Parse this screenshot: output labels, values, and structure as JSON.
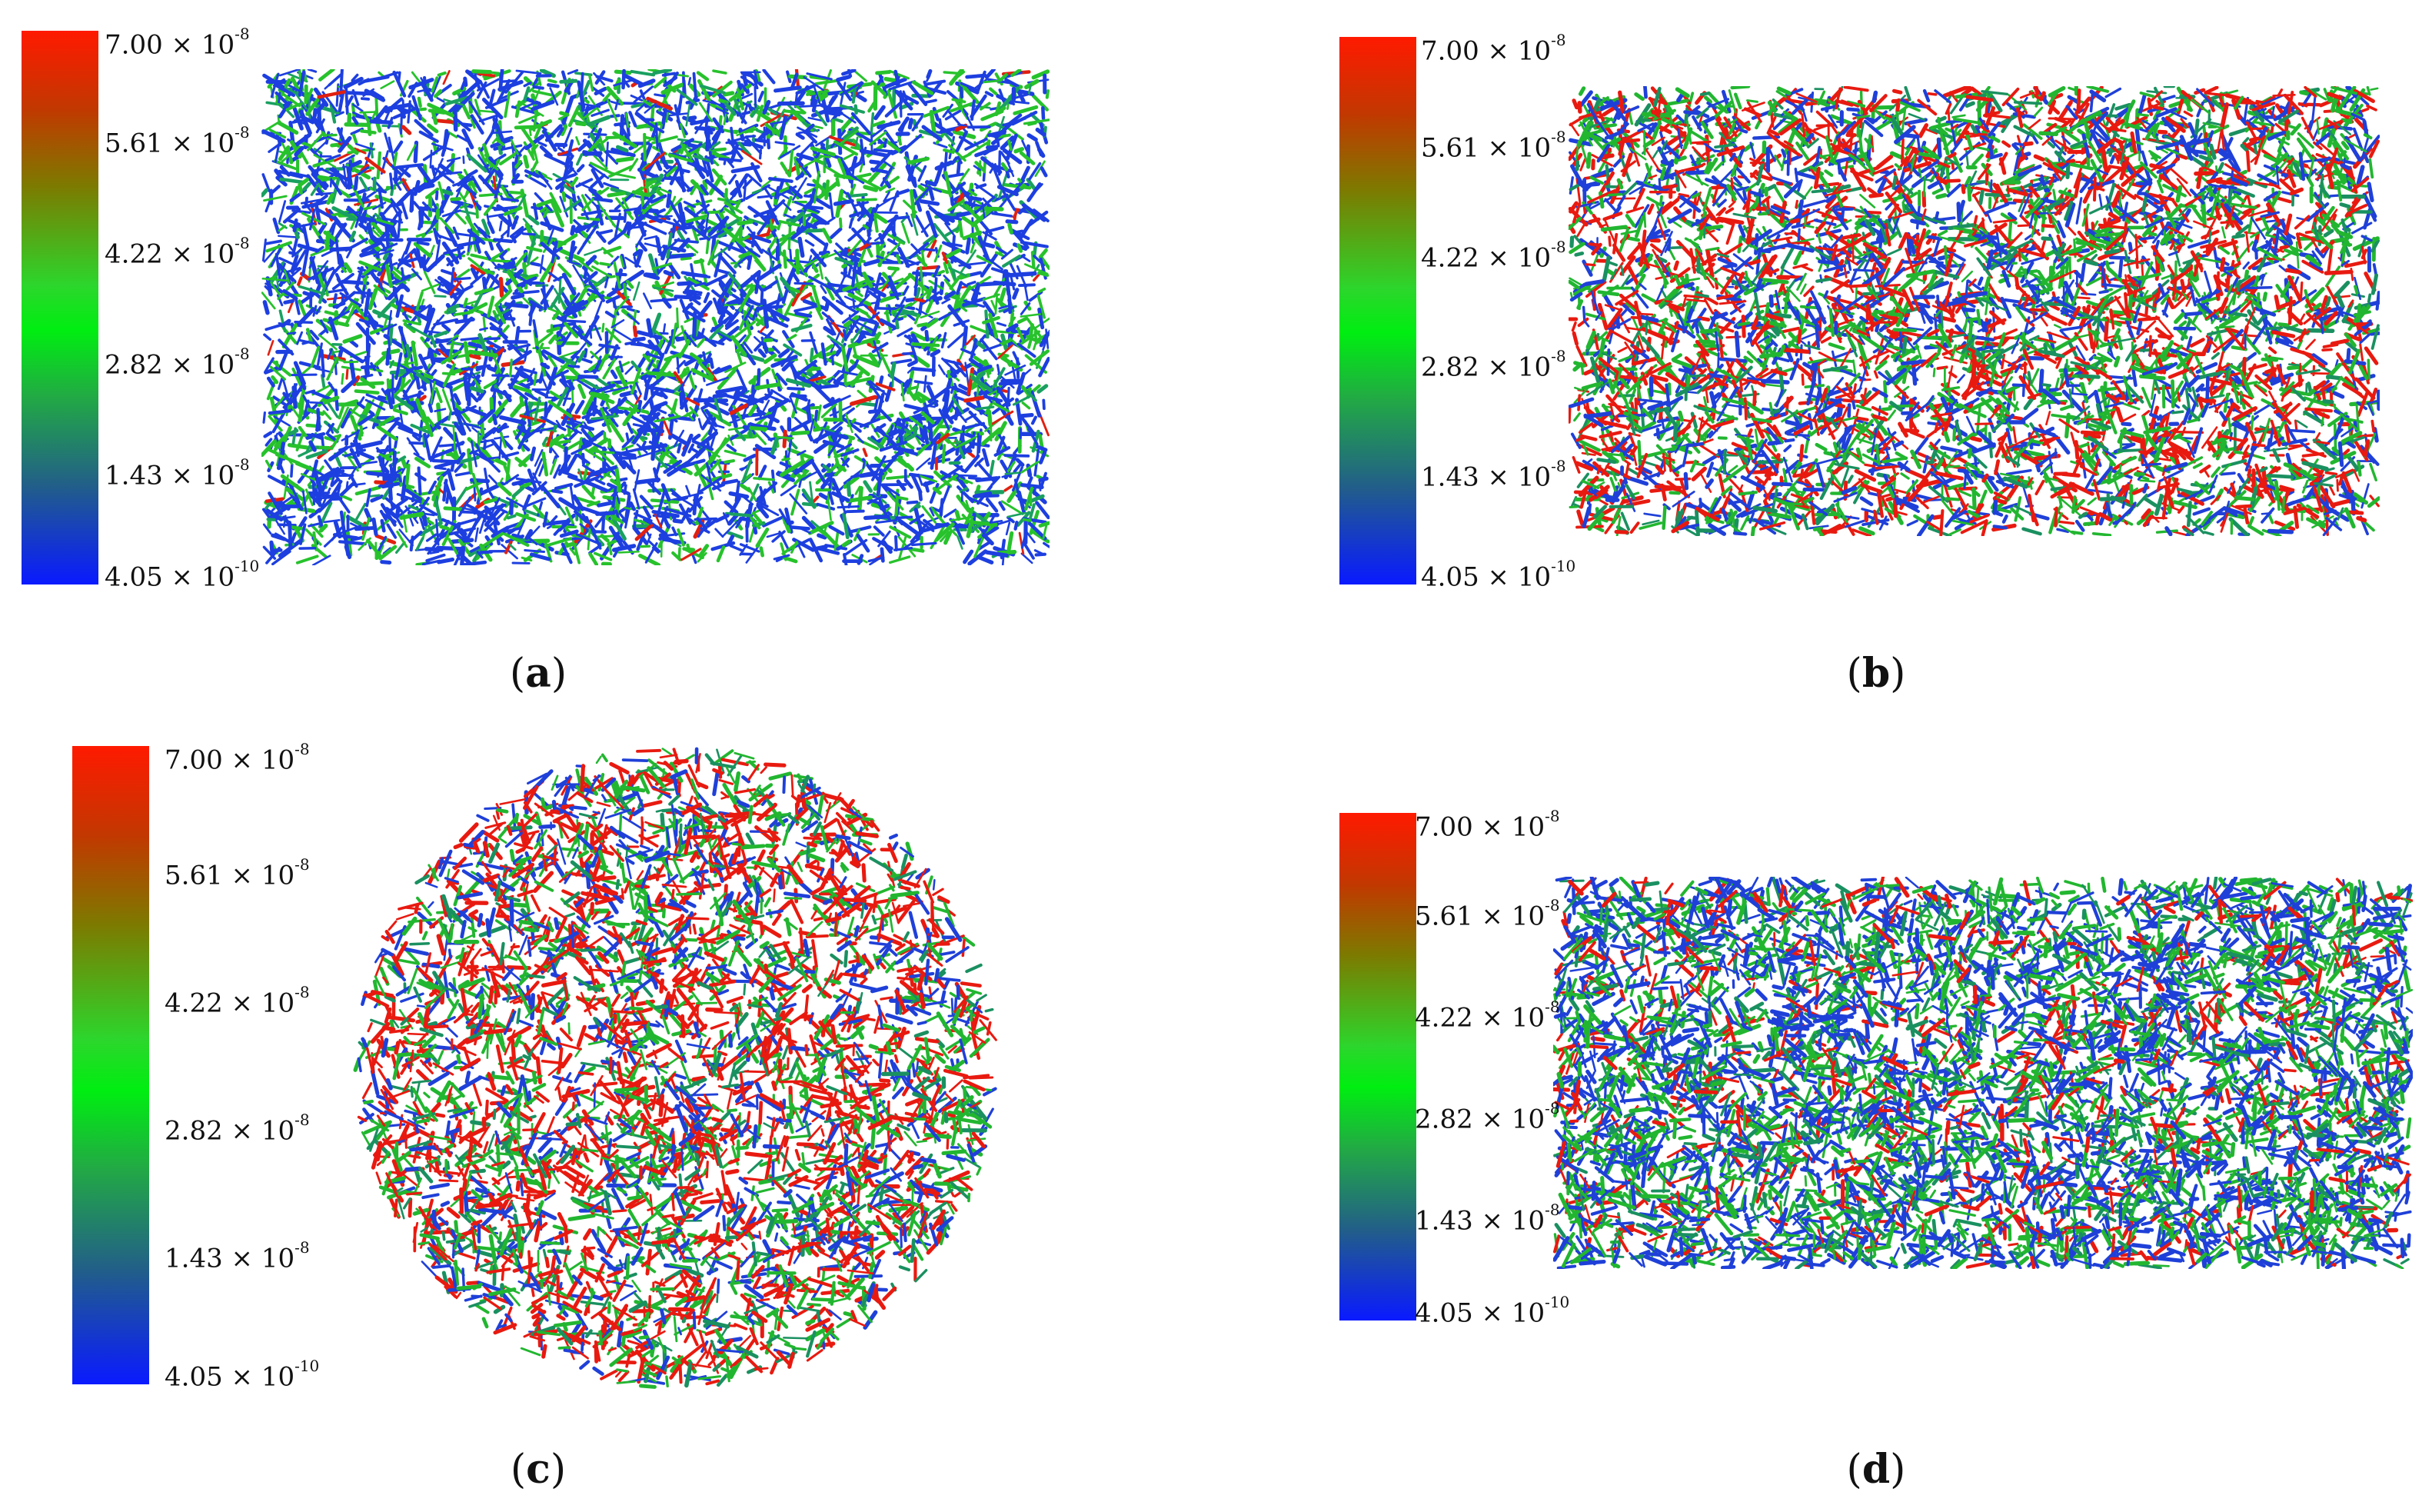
{
  "colorbar": {
    "stops": [
      "#ff1a00",
      "#c23800",
      "#7d7a00",
      "#2cd62c",
      "#00ee11",
      "#22aa44",
      "#225f88",
      "#0a1aff"
    ],
    "ticks": [
      {
        "mantissa": "7.00",
        "times": "×",
        "base": "10",
        "exp": "-8"
      },
      {
        "mantissa": "5.61",
        "times": "×",
        "base": "10",
        "exp": "-8"
      },
      {
        "mantissa": "4.22",
        "times": "×",
        "base": "10",
        "exp": "-8"
      },
      {
        "mantissa": "2.82",
        "times": "×",
        "base": "10",
        "exp": "-8"
      },
      {
        "mantissa": "1.43",
        "times": "×",
        "base": "10",
        "exp": "-8"
      },
      {
        "mantissa": "4.05",
        "times": "×",
        "base": "10",
        "exp": "-10"
      }
    ]
  },
  "panels": [
    {
      "id": "a",
      "caption_open": "(",
      "caption_letter": "a",
      "caption_close": ")",
      "shape": "rect",
      "dominant": [
        "#1d3fe0",
        "#27c22c",
        "#1aa060",
        "#e02010"
      ],
      "weights": [
        0.6,
        0.3,
        0.07,
        0.03
      ]
    },
    {
      "id": "b",
      "caption_open": "(",
      "caption_letter": "b",
      "caption_close": ")",
      "shape": "rect",
      "dominant": [
        "#e81a10",
        "#22b630",
        "#1f40d8",
        "#1a9060"
      ],
      "weights": [
        0.35,
        0.28,
        0.27,
        0.1
      ]
    },
    {
      "id": "c",
      "caption_open": "(",
      "caption_letter": "c",
      "caption_close": ")",
      "shape": "circle",
      "dominant": [
        "#e81a10",
        "#22b630",
        "#1f40d8",
        "#1a9060"
      ],
      "weights": [
        0.42,
        0.25,
        0.23,
        0.1
      ]
    },
    {
      "id": "d",
      "caption_open": "(",
      "caption_letter": "d",
      "caption_close": ")",
      "shape": "rect",
      "dominant": [
        "#1f40d8",
        "#22b630",
        "#1a9060",
        "#e81a10"
      ],
      "weights": [
        0.42,
        0.3,
        0.14,
        0.14
      ]
    }
  ]
}
